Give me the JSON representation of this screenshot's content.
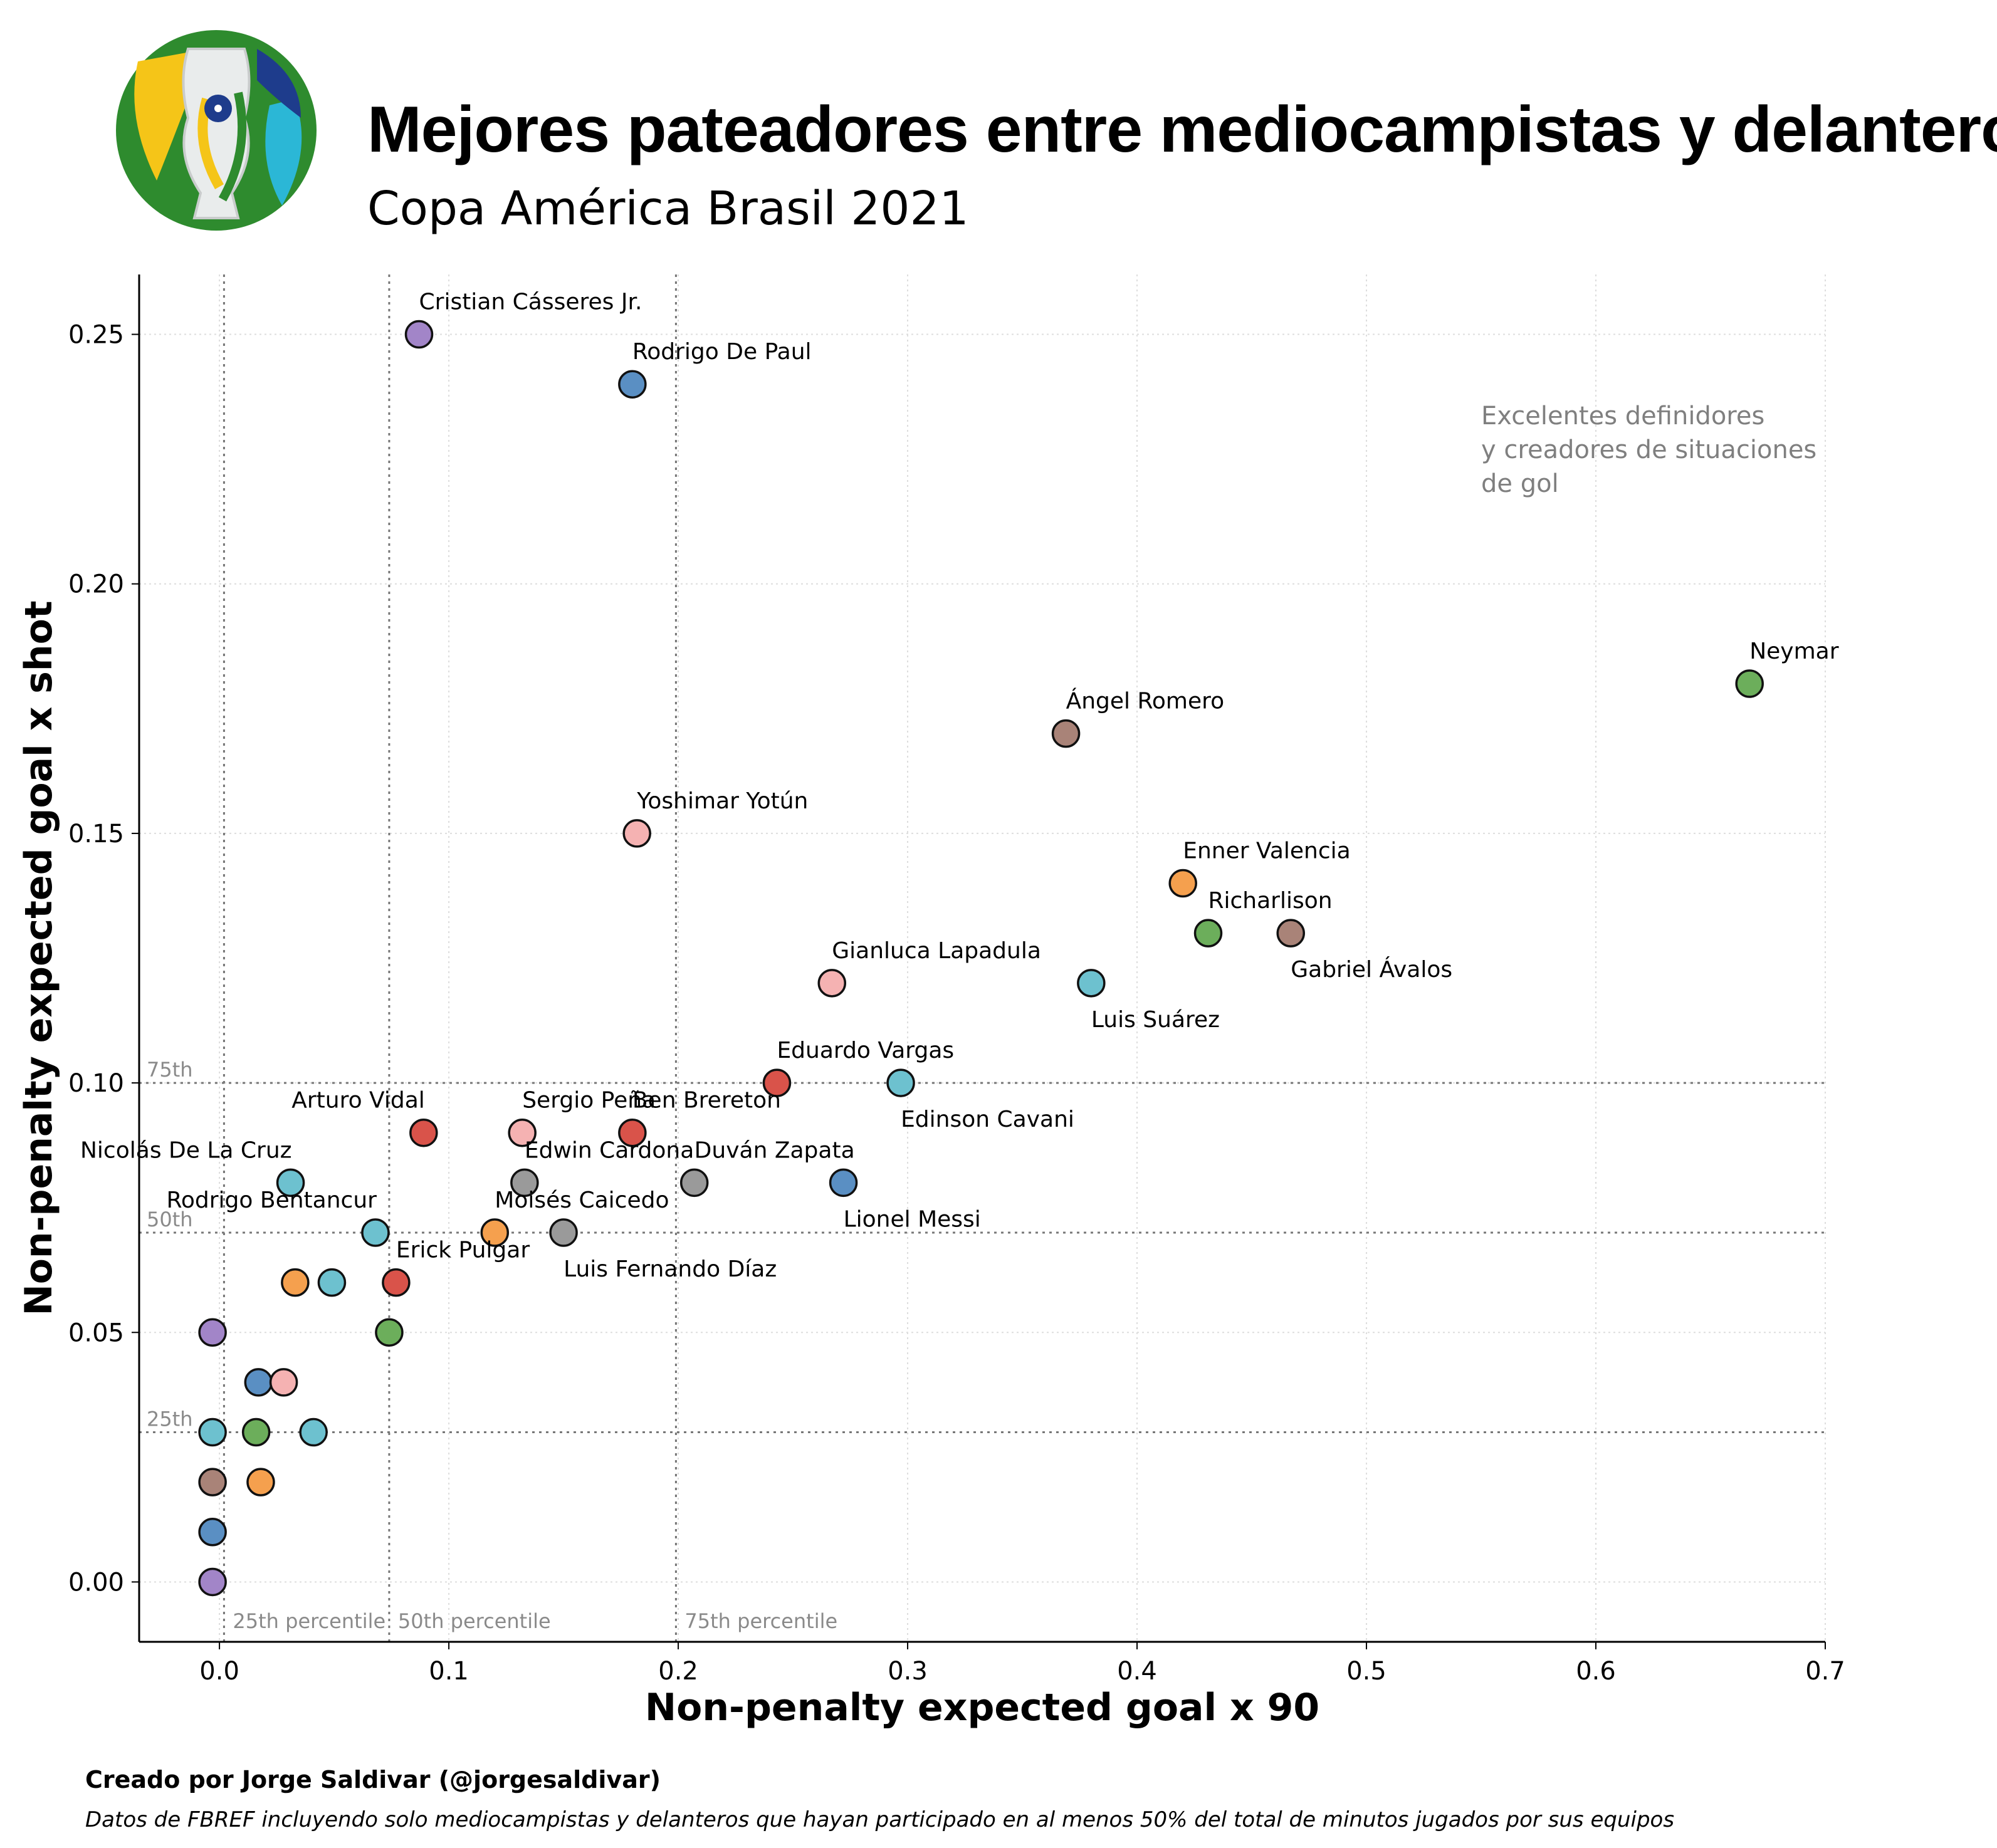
{
  "header": {
    "title": "Mejores pateadores entre mediocampistas y delanteros",
    "subtitle": "Copa América Brasil 2021"
  },
  "footer": {
    "credit": "Creado por Jorge Saldivar (@jorgesaldivar)",
    "note": "Datos de FBREF incluyendo solo mediocampistas y delanteros que hayan participado en al menos 50% del total de minutos jugados por sus equipos"
  },
  "chart_data": {
    "type": "scatter",
    "xlabel": "Non-penalty expected goal x 90",
    "ylabel": "Non-penalty expected goal x shot",
    "xlim": [
      -0.035,
      0.7
    ],
    "ylim": [
      -0.012,
      0.262
    ],
    "xticks": [
      0.0,
      0.1,
      0.2,
      0.3,
      0.4,
      0.5,
      0.6,
      0.7
    ],
    "xtick_labels": [
      "0.0",
      "0.1",
      "0.2",
      "0.3",
      "0.4",
      "0.5",
      "0.6",
      "0.7"
    ],
    "yticks": [
      0.0,
      0.05,
      0.1,
      0.15,
      0.2,
      0.25
    ],
    "ytick_labels": [
      "0.00",
      "0.05",
      "0.10",
      "0.15",
      "0.20",
      "0.25"
    ],
    "grid": true,
    "x_percentiles": [
      {
        "value": 0.002,
        "label": "25th percentile"
      },
      {
        "value": 0.074,
        "label": "50th percentile"
      },
      {
        "value": 0.199,
        "label": "75th percentile"
      }
    ],
    "y_percentiles": [
      {
        "value": 0.03,
        "label": "25th"
      },
      {
        "value": 0.07,
        "label": "50th"
      },
      {
        "value": 0.1,
        "label": "75th"
      }
    ],
    "annotation": {
      "x": 0.55,
      "y": 0.231,
      "lines": [
        "Excelentes definidores",
        "y creadores de situaciones",
        "de gol"
      ],
      "color": "#7f7f7f"
    },
    "colors": {
      "blue": "#5a8fc3",
      "orange": "#f5a04e",
      "green": "#6cae5b",
      "red": "#d9534a",
      "purple": "#a285c8",
      "brown": "#a98378",
      "pink": "#f5b2b2",
      "gray": "#9a9a9a",
      "cyan": "#6dc1cf"
    },
    "points": [
      {
        "name": "Cristian Cásseres Jr.",
        "x": 0.087,
        "y": 0.25,
        "color": "purple",
        "label_pos": "above"
      },
      {
        "name": "Rodrigo De Paul",
        "x": 0.18,
        "y": 0.24,
        "color": "blue",
        "label_pos": "above"
      },
      {
        "name": "Neymar",
        "x": 0.667,
        "y": 0.18,
        "color": "green",
        "label_pos": "above"
      },
      {
        "name": "Ángel Romero",
        "x": 0.369,
        "y": 0.17,
        "color": "brown",
        "label_pos": "above"
      },
      {
        "name": "Yoshimar Yotún",
        "x": 0.182,
        "y": 0.15,
        "color": "pink",
        "label_pos": "above"
      },
      {
        "name": "Enner Valencia",
        "x": 0.42,
        "y": 0.14,
        "color": "orange",
        "label_pos": "above"
      },
      {
        "name": "Richarlison",
        "x": 0.431,
        "y": 0.13,
        "color": "green",
        "label_pos": "above"
      },
      {
        "name": "Gabriel Ávalos",
        "x": 0.467,
        "y": 0.13,
        "color": "brown",
        "label_pos": "below"
      },
      {
        "name": "Gianluca Lapadula",
        "x": 0.267,
        "y": 0.12,
        "color": "pink",
        "label_pos": "above"
      },
      {
        "name": "Luis Suárez",
        "x": 0.38,
        "y": 0.12,
        "color": "cyan",
        "label_pos": "below"
      },
      {
        "name": "Eduardo Vargas",
        "x": 0.243,
        "y": 0.1,
        "color": "red",
        "label_pos": "above"
      },
      {
        "name": "Edinson Cavani",
        "x": 0.297,
        "y": 0.1,
        "color": "cyan",
        "label_pos": "below"
      },
      {
        "name": "Arturo Vidal",
        "x": 0.089,
        "y": 0.09,
        "color": "red",
        "label_pos": "above-left"
      },
      {
        "name": "Sergio Peña",
        "x": 0.132,
        "y": 0.09,
        "color": "pink",
        "label_pos": "above"
      },
      {
        "name": "Ben Brereton",
        "x": 0.18,
        "y": 0.09,
        "color": "red",
        "label_pos": "above"
      },
      {
        "name": "Nicolás De La Cruz",
        "x": 0.031,
        "y": 0.08,
        "color": "cyan",
        "label_pos": "above-left"
      },
      {
        "name": "Edwin Cardona",
        "x": 0.133,
        "y": 0.08,
        "color": "gray",
        "label_pos": "above"
      },
      {
        "name": "Duván Zapata",
        "x": 0.207,
        "y": 0.08,
        "color": "gray",
        "label_pos": "above"
      },
      {
        "name": "Lionel Messi",
        "x": 0.272,
        "y": 0.08,
        "color": "blue",
        "label_pos": "below"
      },
      {
        "name": "Rodrigo Bentancur",
        "x": 0.068,
        "y": 0.07,
        "color": "cyan",
        "label_pos": "above-left"
      },
      {
        "name": "Moisés Caicedo",
        "x": 0.12,
        "y": 0.07,
        "color": "orange",
        "label_pos": "above"
      },
      {
        "name": "Luis Fernando Díaz",
        "x": 0.15,
        "y": 0.07,
        "color": "gray",
        "label_pos": "below"
      },
      {
        "name": "Erick Pulgar",
        "x": 0.077,
        "y": 0.06,
        "color": "red",
        "label_pos": "above"
      },
      {
        "name": "",
        "x": 0.033,
        "y": 0.06,
        "color": "orange",
        "label_pos": "none"
      },
      {
        "name": "",
        "x": 0.049,
        "y": 0.06,
        "color": "cyan",
        "label_pos": "none"
      },
      {
        "name": "",
        "x": 0.074,
        "y": 0.05,
        "color": "green",
        "label_pos": "none"
      },
      {
        "name": "",
        "x": -0.003,
        "y": 0.05,
        "color": "purple",
        "label_pos": "none"
      },
      {
        "name": "",
        "x": 0.017,
        "y": 0.04,
        "color": "blue",
        "label_pos": "none"
      },
      {
        "name": "",
        "x": 0.028,
        "y": 0.04,
        "color": "pink",
        "label_pos": "none"
      },
      {
        "name": "",
        "x": -0.003,
        "y": 0.03,
        "color": "cyan",
        "label_pos": "none"
      },
      {
        "name": "",
        "x": 0.016,
        "y": 0.03,
        "color": "green",
        "label_pos": "none"
      },
      {
        "name": "",
        "x": 0.041,
        "y": 0.03,
        "color": "cyan",
        "label_pos": "none"
      },
      {
        "name": "",
        "x": -0.003,
        "y": 0.02,
        "color": "brown",
        "label_pos": "none"
      },
      {
        "name": "",
        "x": 0.018,
        "y": 0.02,
        "color": "orange",
        "label_pos": "none"
      },
      {
        "name": "",
        "x": -0.003,
        "y": 0.01,
        "color": "blue",
        "label_pos": "none"
      },
      {
        "name": "",
        "x": -0.003,
        "y": 0.0,
        "color": "purple",
        "label_pos": "none"
      }
    ]
  }
}
